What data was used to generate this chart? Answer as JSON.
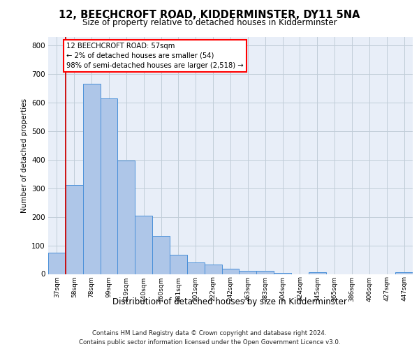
{
  "title": "12, BEECHCROFT ROAD, KIDDERMINSTER, DY11 5NA",
  "subtitle": "Size of property relative to detached houses in Kidderminster",
  "xlabel": "Distribution of detached houses by size in Kidderminster",
  "ylabel": "Number of detached properties",
  "categories": [
    "37sqm",
    "58sqm",
    "78sqm",
    "99sqm",
    "119sqm",
    "140sqm",
    "160sqm",
    "181sqm",
    "201sqm",
    "222sqm",
    "242sqm",
    "263sqm",
    "283sqm",
    "304sqm",
    "324sqm",
    "345sqm",
    "365sqm",
    "386sqm",
    "406sqm",
    "427sqm",
    "447sqm"
  ],
  "values": [
    75,
    312,
    665,
    615,
    397,
    205,
    134,
    68,
    40,
    32,
    19,
    12,
    10,
    3,
    0,
    6,
    0,
    0,
    0,
    0,
    6
  ],
  "bar_color": "#aec6e8",
  "bar_edge_color": "#4a90d9",
  "vline_color": "#cc0000",
  "vline_x": 0.5,
  "annotation_line1": "12 BEECHCROFT ROAD: 57sqm",
  "annotation_line2": "← 2% of detached houses are smaller (54)",
  "annotation_line3": "98% of semi-detached houses are larger (2,518) →",
  "ylim_max": 830,
  "yticks": [
    0,
    100,
    200,
    300,
    400,
    500,
    600,
    700,
    800
  ],
  "bg_color": "#e8eef8",
  "grid_color": "#c0ccd8",
  "footer_line1": "Contains HM Land Registry data © Crown copyright and database right 2024.",
  "footer_line2": "Contains public sector information licensed under the Open Government Licence v3.0."
}
